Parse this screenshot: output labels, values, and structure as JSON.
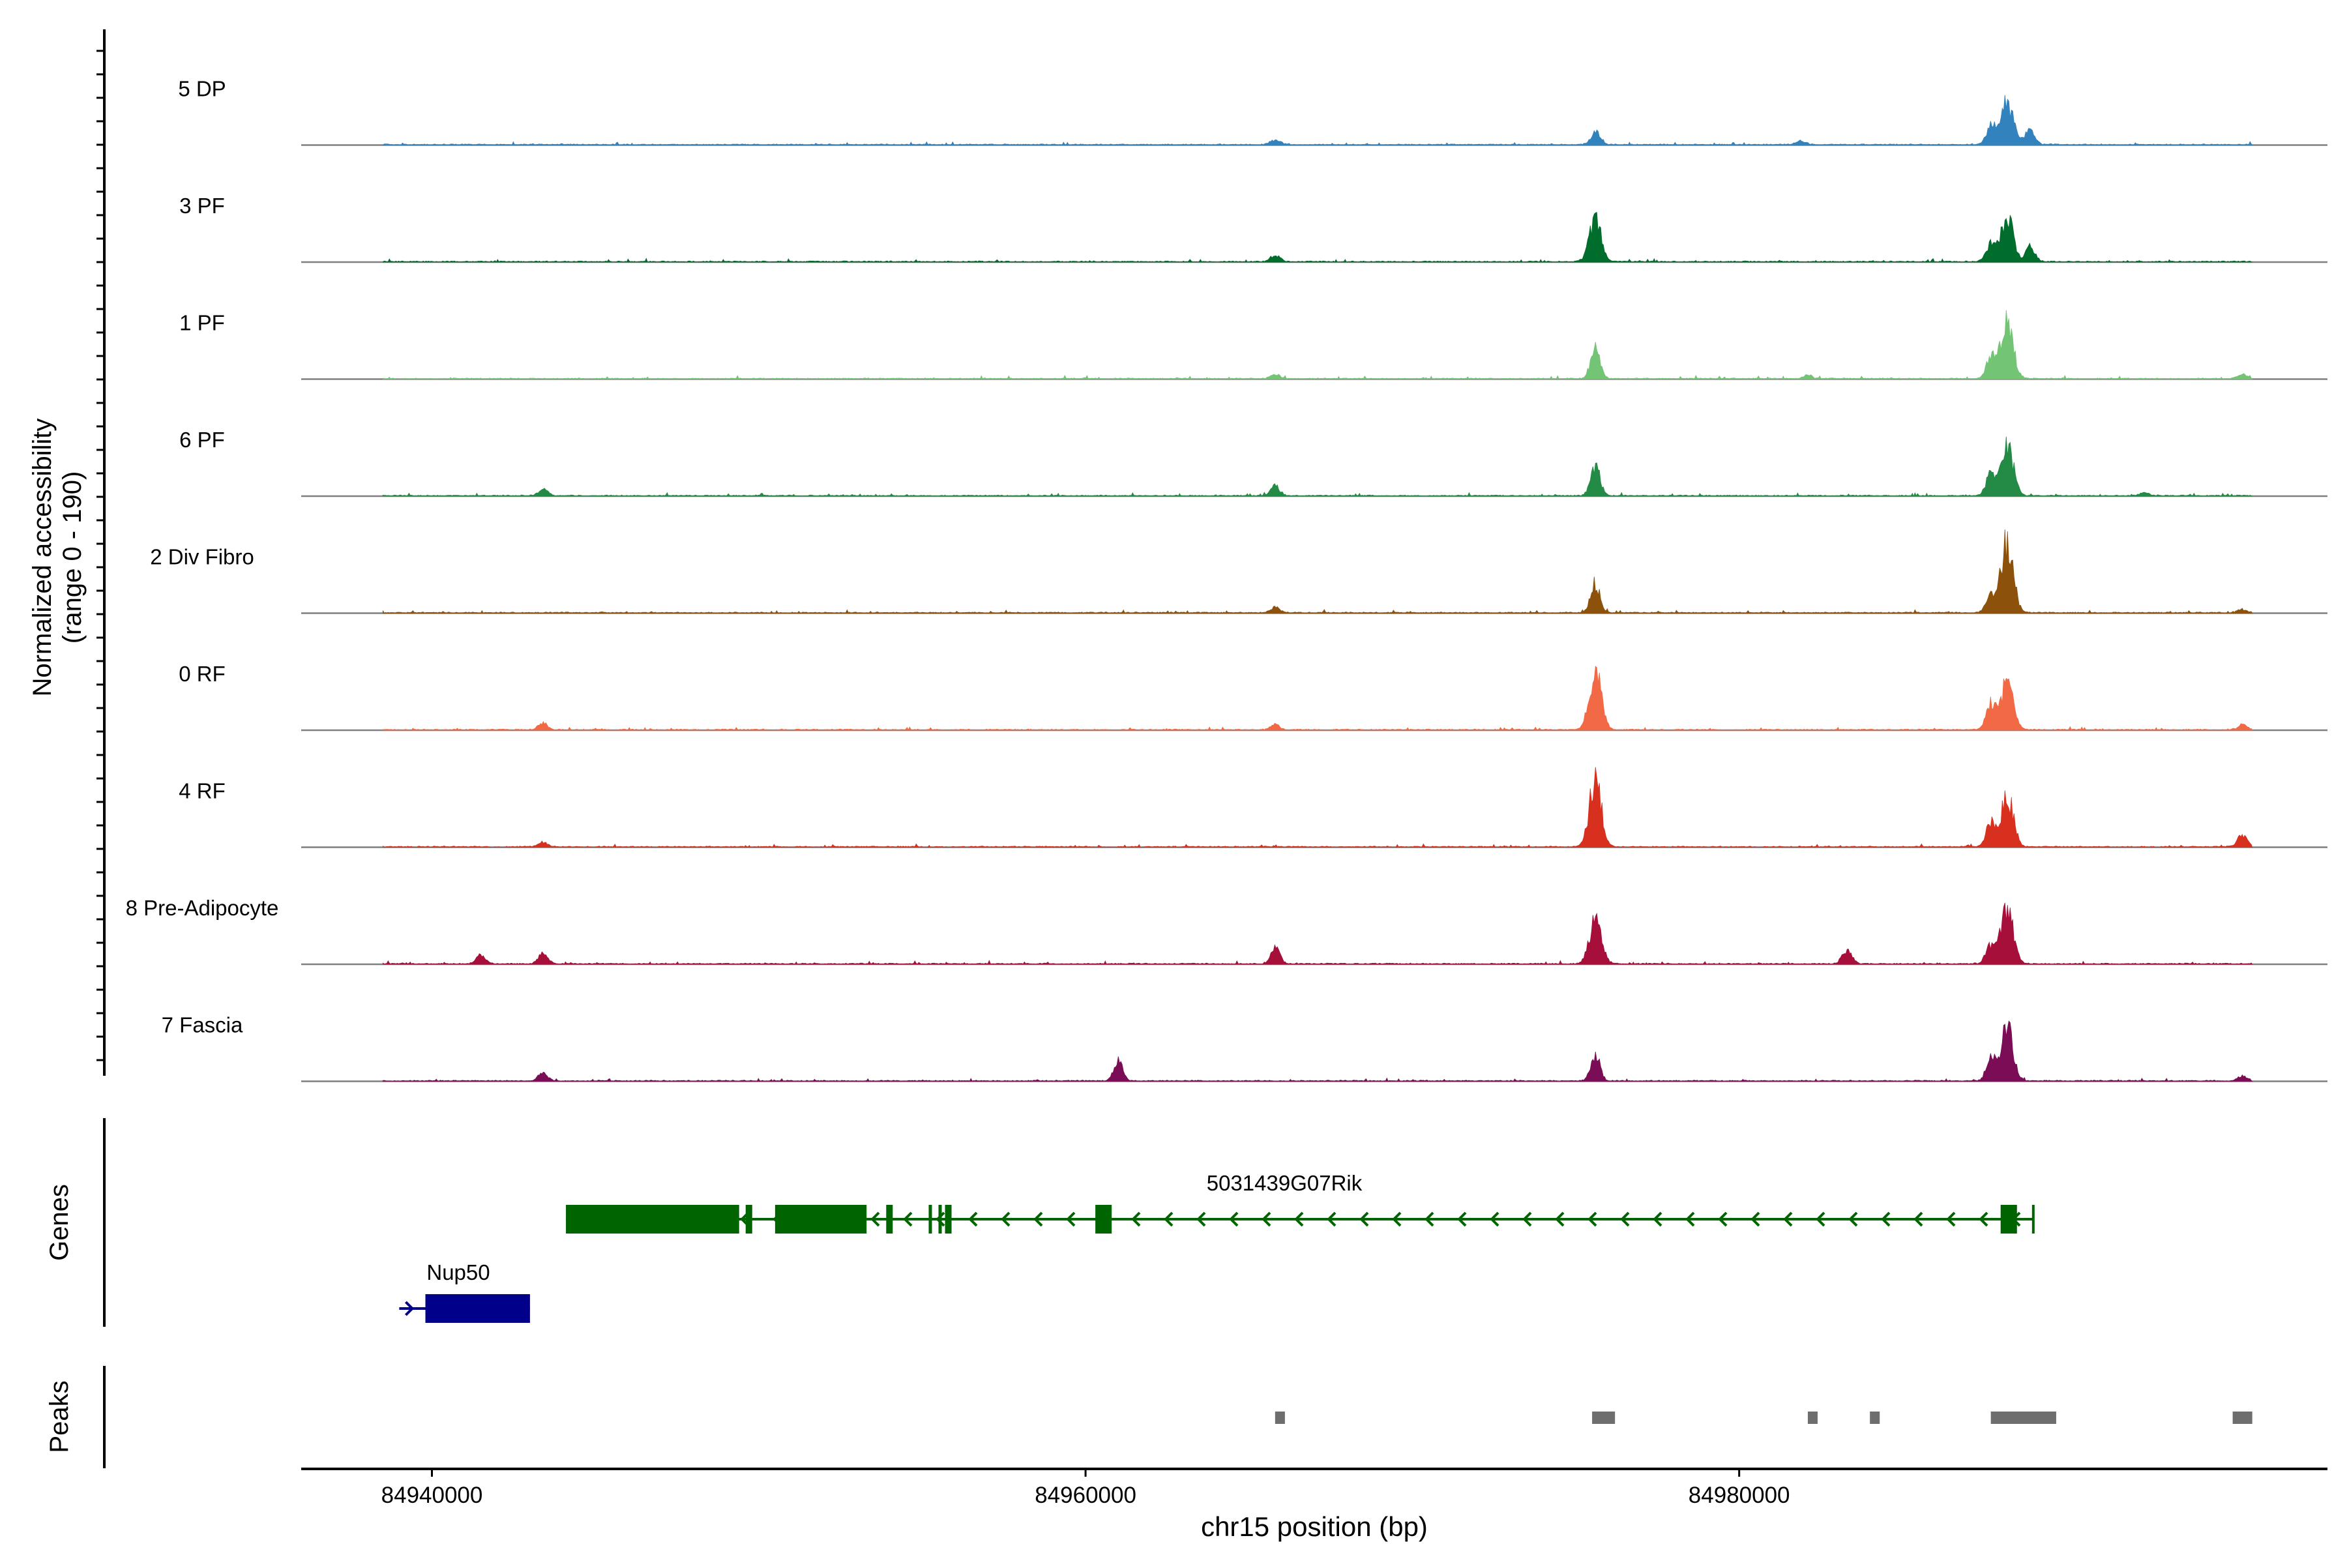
{
  "panels": {
    "coverage_ylabel_line1": "Normalized accessibility",
    "coverage_ylabel_line2": "(range 0 - 190)",
    "genes_label": "Genes",
    "peaks_label": "Peaks"
  },
  "chart_data": {
    "type": "area",
    "chromosome": "chr15",
    "xlabel": "chr15 position (bp)",
    "xlim": [
      84936000,
      84998000
    ],
    "xticks": [
      84940000,
      84960000,
      84980000
    ],
    "xtick_labels": [
      "84940000",
      "84960000",
      "84980000"
    ],
    "ylim": [
      0,
      190
    ],
    "series": [
      {
        "name": "5 DP",
        "color": "#3182bd",
        "peaks": [
          [
            84965800,
            12
          ],
          [
            84975600,
            30
          ],
          [
            84981900,
            8
          ],
          [
            84988200,
            105
          ],
          [
            84987700,
            45
          ],
          [
            84988900,
            40
          ]
        ]
      },
      {
        "name": "3 PF",
        "color": "#006d2c",
        "peaks": [
          [
            84965800,
            14
          ],
          [
            84975600,
            100
          ],
          [
            84988200,
            110
          ],
          [
            84987700,
            40
          ],
          [
            84988900,
            35
          ]
        ]
      },
      {
        "name": "1 PF",
        "color": "#74c476",
        "peaks": [
          [
            84965800,
            10
          ],
          [
            84975600,
            80
          ],
          [
            84982100,
            8
          ],
          [
            84988200,
            140
          ],
          [
            84987700,
            55
          ],
          [
            84995400,
            10
          ]
        ]
      },
      {
        "name": "6 PF",
        "color": "#238b45",
        "peaks": [
          [
            84943400,
            16
          ],
          [
            84965800,
            24
          ],
          [
            84975600,
            70
          ],
          [
            84988200,
            125
          ],
          [
            84987700,
            50
          ],
          [
            84992400,
            8
          ]
        ]
      },
      {
        "name": "2 Div Fibro",
        "color": "#8c510a",
        "peaks": [
          [
            84965800,
            12
          ],
          [
            84975600,
            70
          ],
          [
            84988200,
            170
          ],
          [
            84987700,
            40
          ],
          [
            84995400,
            8
          ]
        ]
      },
      {
        "name": "0 RF",
        "color": "#f16a45",
        "peaks": [
          [
            84943400,
            16
          ],
          [
            84965800,
            12
          ],
          [
            84975600,
            135
          ],
          [
            84988200,
            115
          ],
          [
            84987700,
            65
          ],
          [
            84995400,
            12
          ]
        ]
      },
      {
        "name": "4 RF",
        "color": "#d7301f",
        "peaks": [
          [
            84943400,
            12
          ],
          [
            84975600,
            155
          ],
          [
            84988200,
            125
          ],
          [
            84987700,
            60
          ],
          [
            84995400,
            30
          ]
        ]
      },
      {
        "name": "8 Pre-Adipocyte",
        "color": "#a50f3a",
        "peaks": [
          [
            84941500,
            20
          ],
          [
            84943400,
            24
          ],
          [
            84965800,
            36
          ],
          [
            84975600,
            105
          ],
          [
            84983300,
            35
          ],
          [
            84988200,
            140
          ],
          [
            84987700,
            45
          ]
        ]
      },
      {
        "name": "7 Fascia",
        "color": "#7a0d56",
        "peaks": [
          [
            84943400,
            20
          ],
          [
            84961000,
            45
          ],
          [
            84975600,
            60
          ],
          [
            84988200,
            125
          ],
          [
            84987700,
            55
          ],
          [
            84995400,
            12
          ]
        ]
      }
    ],
    "genes": [
      {
        "name": "5031439G07Rik",
        "color": "#006400",
        "strand": "-",
        "start": 84944100,
        "end": 84989000,
        "exons": [
          [
            84944100,
            84949400
          ],
          [
            84949600,
            84949800
          ],
          [
            84950500,
            84953300
          ],
          [
            84953900,
            84954100
          ],
          [
            84955200,
            84955300
          ],
          [
            84955500,
            84955600
          ],
          [
            84955700,
            84955900
          ],
          [
            84960300,
            84960800
          ],
          [
            84988000,
            84988500
          ]
        ]
      },
      {
        "name": "Nup50",
        "color": "#00008b",
        "strand": "+",
        "start": 84939000,
        "end": 84943000,
        "exons": [
          [
            84939800,
            84943000
          ]
        ]
      }
    ],
    "peak_regions": [
      [
        84965800,
        84966100
      ],
      [
        84975500,
        84976200
      ],
      [
        84982100,
        84982400
      ],
      [
        84984000,
        84984300
      ],
      [
        84987700,
        84989700
      ],
      [
        84995100,
        84995700
      ]
    ]
  }
}
